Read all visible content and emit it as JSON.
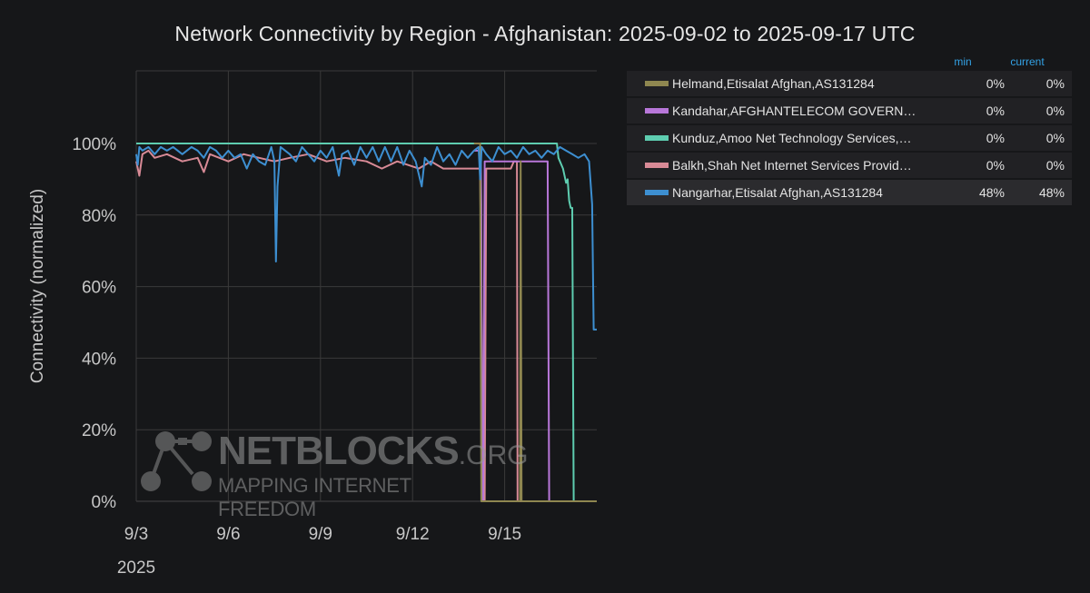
{
  "chart_data": {
    "type": "line",
    "title": "Network Connectivity by Region - Afghanistan: 2025-09-02 to 2025-09-17 UTC",
    "ylabel": "Connectivity (normalized)",
    "xlabel": "",
    "x_tick_labels": [
      "9/3",
      "9/6",
      "9/9",
      "9/12",
      "9/15"
    ],
    "x_tick_days": [
      3,
      6,
      9,
      12,
      15
    ],
    "year_label": "2025",
    "xlim_days": [
      3,
      18.0
    ],
    "ylim": [
      0,
      100
    ],
    "y_ticks": [
      0,
      20,
      40,
      60,
      80,
      100
    ],
    "y_tick_labels": [
      "0%",
      "20%",
      "40%",
      "60%",
      "80%",
      "100%"
    ],
    "grid": true,
    "legend_header": {
      "min": "min",
      "current": "current"
    },
    "series": [
      {
        "name": "Helmand,Etisalat Afghan,AS131284",
        "color": "#8f8750",
        "min": "0%",
        "current": "0%",
        "points": [
          [
            14.0,
            100
          ],
          [
            14.2,
            100
          ],
          [
            14.22,
            49
          ],
          [
            14.24,
            0
          ],
          [
            15.5,
            0
          ],
          [
            15.52,
            95
          ],
          [
            15.55,
            0
          ],
          [
            18.0,
            0
          ]
        ]
      },
      {
        "name": "Kandahar,AFGHANTELECOM GOVERN…",
        "color": "#b877d9",
        "min": "0%",
        "current": "0%",
        "points": [
          [
            14.0,
            98
          ],
          [
            14.22,
            98
          ],
          [
            14.24,
            83
          ],
          [
            14.26,
            0
          ],
          [
            14.3,
            0
          ],
          [
            14.35,
            95
          ],
          [
            16.4,
            95
          ],
          [
            16.45,
            0
          ],
          [
            18.0,
            0
          ]
        ]
      },
      {
        "name": "Kunduz,Amoo Net Technology Services,…",
        "color": "#5ecdb0",
        "min": "0%",
        "current": "0%",
        "points": [
          [
            3,
            100
          ],
          [
            16.7,
            100
          ],
          [
            16.75,
            96
          ],
          [
            16.9,
            93
          ],
          [
            17.0,
            89
          ],
          [
            17.05,
            90
          ],
          [
            17.1,
            84
          ],
          [
            17.15,
            82
          ],
          [
            17.2,
            82
          ],
          [
            17.25,
            0
          ],
          [
            17.5,
            0
          ]
        ]
      },
      {
        "name": "Balkh,Shah Net Internet Services Provid…",
        "color": "#d88a96",
        "min": "0%",
        "current": "0%",
        "points": [
          [
            3,
            95
          ],
          [
            3.1,
            91
          ],
          [
            3.2,
            97
          ],
          [
            3.4,
            98
          ],
          [
            3.6,
            96
          ],
          [
            4.0,
            97
          ],
          [
            4.5,
            95
          ],
          [
            5.0,
            96
          ],
          [
            5.2,
            92
          ],
          [
            5.4,
            97
          ],
          [
            6.0,
            95
          ],
          [
            6.5,
            97
          ],
          [
            7.0,
            96
          ],
          [
            7.5,
            95
          ],
          [
            8.0,
            96
          ],
          [
            8.6,
            97
          ],
          [
            9.2,
            95
          ],
          [
            9.8,
            96
          ],
          [
            10.5,
            95
          ],
          [
            11.0,
            93
          ],
          [
            11.5,
            95
          ],
          [
            12.2,
            93
          ],
          [
            12.6,
            95
          ],
          [
            13.0,
            93
          ],
          [
            13.5,
            93
          ],
          [
            14.0,
            93
          ],
          [
            14.2,
            93
          ],
          [
            14.3,
            0
          ],
          [
            14.35,
            0
          ],
          [
            14.4,
            93
          ],
          [
            15.2,
            93
          ],
          [
            15.3,
            95
          ],
          [
            15.4,
            95
          ],
          [
            15.42,
            0
          ],
          [
            16.5,
            0
          ]
        ]
      },
      {
        "name": "Nangarhar,Etisalat Afghan,AS131284",
        "color": "#3d8fd1",
        "min": "48%",
        "current": "48%",
        "points": [
          [
            3,
            97
          ],
          [
            3.05,
            94
          ],
          [
            3.1,
            99
          ],
          [
            3.2,
            98
          ],
          [
            3.4,
            99
          ],
          [
            3.6,
            97
          ],
          [
            3.8,
            99
          ],
          [
            4.0,
            98
          ],
          [
            4.2,
            99
          ],
          [
            4.5,
            97
          ],
          [
            4.8,
            99
          ],
          [
            5.0,
            98
          ],
          [
            5.2,
            96
          ],
          [
            5.4,
            99
          ],
          [
            5.6,
            98
          ],
          [
            5.8,
            96
          ],
          [
            6.0,
            98
          ],
          [
            6.2,
            96
          ],
          [
            6.4,
            97
          ],
          [
            6.6,
            93
          ],
          [
            6.8,
            97
          ],
          [
            7.0,
            95
          ],
          [
            7.2,
            94
          ],
          [
            7.4,
            99
          ],
          [
            7.5,
            95
          ],
          [
            7.55,
            67
          ],
          [
            7.6,
            88
          ],
          [
            7.7,
            99
          ],
          [
            8.0,
            97
          ],
          [
            8.2,
            95
          ],
          [
            8.4,
            99
          ],
          [
            8.6,
            97
          ],
          [
            8.8,
            95
          ],
          [
            9.0,
            98
          ],
          [
            9.2,
            96
          ],
          [
            9.4,
            99
          ],
          [
            9.6,
            91
          ],
          [
            9.7,
            97
          ],
          [
            9.9,
            98
          ],
          [
            10.1,
            94
          ],
          [
            10.3,
            99
          ],
          [
            10.5,
            96
          ],
          [
            10.7,
            99
          ],
          [
            10.9,
            95
          ],
          [
            11.1,
            99
          ],
          [
            11.3,
            95
          ],
          [
            11.5,
            99
          ],
          [
            11.7,
            94
          ],
          [
            11.9,
            98
          ],
          [
            12.1,
            95
          ],
          [
            12.3,
            88
          ],
          [
            12.4,
            96
          ],
          [
            12.6,
            94
          ],
          [
            12.8,
            99
          ],
          [
            13.0,
            95
          ],
          [
            13.2,
            97
          ],
          [
            13.4,
            94
          ],
          [
            13.6,
            98
          ],
          [
            13.8,
            96
          ],
          [
            14.0,
            98
          ],
          [
            14.15,
            99
          ],
          [
            14.2,
            90
          ],
          [
            14.25,
            99
          ],
          [
            14.4,
            97
          ],
          [
            14.6,
            95
          ],
          [
            14.8,
            99
          ],
          [
            15.0,
            97
          ],
          [
            15.2,
            98
          ],
          [
            15.4,
            96
          ],
          [
            15.6,
            99
          ],
          [
            15.8,
            97
          ],
          [
            16.0,
            98
          ],
          [
            16.2,
            96
          ],
          [
            16.4,
            98
          ],
          [
            16.6,
            97
          ],
          [
            16.8,
            99
          ],
          [
            17.0,
            98
          ],
          [
            17.2,
            97
          ],
          [
            17.4,
            96
          ],
          [
            17.6,
            97
          ],
          [
            17.75,
            95
          ],
          [
            17.85,
            83
          ],
          [
            17.9,
            48
          ],
          [
            18.0,
            48
          ]
        ]
      }
    ]
  },
  "watermark": {
    "brand": "NETBLOCKS",
    "suffix": ".ORG",
    "tagline": "MAPPING INTERNET FREEDOM"
  }
}
